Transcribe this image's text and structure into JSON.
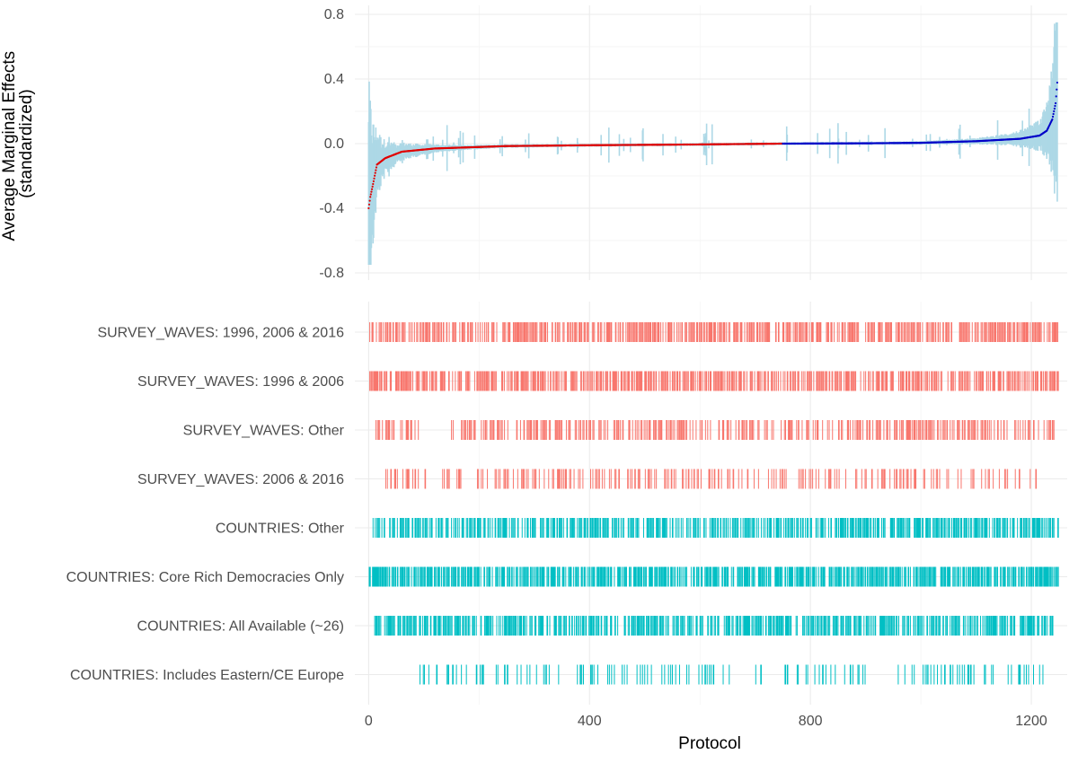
{
  "chart_data": {
    "type": "scatter",
    "xlabel": "Protocol",
    "ylabel_lines": [
      "Average Marginal Effects",
      "(standardized)"
    ],
    "x_ticks": [
      0,
      400,
      800,
      1200
    ],
    "xlim": [
      -25,
      1265
    ],
    "n_protocols": 1248,
    "colors": {
      "negative_point": "#e00000",
      "positive_point": "#0000c8",
      "interval": "#add8e6",
      "survey_waves": "#f8766d",
      "countries": "#00bfc4",
      "grid": "#ebebeb"
    },
    "effects_panel": {
      "y_ticks": [
        0.8,
        0.4,
        0.0,
        -0.4,
        -0.8
      ],
      "y_tick_labels": [
        "0.8",
        "0.4",
        "0.0",
        "-0.4",
        "-0.8"
      ],
      "ylim": [
        -0.8,
        0.8
      ],
      "anchor_points": [
        [
          0,
          -0.4
        ],
        [
          3,
          -0.33
        ],
        [
          8,
          -0.25
        ],
        [
          15,
          -0.13
        ],
        [
          30,
          -0.09
        ],
        [
          60,
          -0.05
        ],
        [
          120,
          -0.03
        ],
        [
          250,
          -0.015
        ],
        [
          400,
          -0.01
        ],
        [
          600,
          -0.005
        ],
        [
          750,
          0.0
        ],
        [
          900,
          0.002
        ],
        [
          1000,
          0.005
        ],
        [
          1100,
          0.015
        ],
        [
          1180,
          0.03
        ],
        [
          1215,
          0.05
        ],
        [
          1228,
          0.08
        ],
        [
          1238,
          0.15
        ],
        [
          1244,
          0.25
        ],
        [
          1248,
          0.42
        ]
      ]
    },
    "spec_panel": {
      "rows": [
        {
          "label": "SURVEY_WAVES: 1996, 2006 & 2016",
          "group": "survey_waves",
          "ranges": [
            [
              0,
              1250
            ]
          ],
          "density": 0.45
        },
        {
          "label": "SURVEY_WAVES: 1996 & 2006",
          "group": "survey_waves",
          "ranges": [
            [
              0,
              1250
            ]
          ],
          "density": 0.45
        },
        {
          "label": "SURVEY_WAVES: Other",
          "group": "survey_waves",
          "ranges": [
            [
              10,
              90
            ],
            [
              150,
              1245
            ]
          ],
          "density": 0.3
        },
        {
          "label": "SURVEY_WAVES: 2006 & 2016",
          "group": "survey_waves",
          "ranges": [
            [
              30,
              1220
            ]
          ],
          "density": 0.2
        },
        {
          "label": "COUNTRIES: Other",
          "group": "countries",
          "ranges": [
            [
              0,
              1250
            ]
          ],
          "density": 0.45
        },
        {
          "label": "COUNTRIES: Core Rich Democracies Only",
          "group": "countries",
          "ranges": [
            [
              0,
              1250
            ]
          ],
          "density": 0.55
        },
        {
          "label": "COUNTRIES: All Available (~26)",
          "group": "countries",
          "ranges": [
            [
              10,
              1240
            ]
          ],
          "density": 0.45
        },
        {
          "label": "COUNTRIES: Includes Eastern/CE Europe",
          "group": "countries",
          "ranges": [
            [
              90,
              1225
            ]
          ],
          "density": 0.12
        }
      ]
    }
  }
}
